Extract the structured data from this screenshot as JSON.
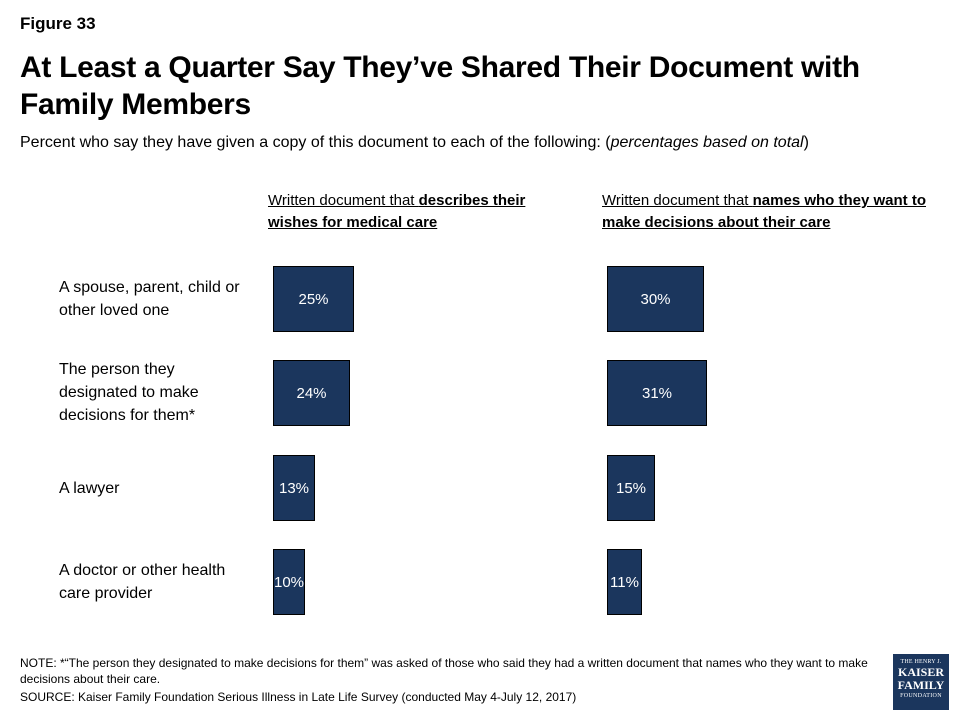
{
  "figure_label": "Figure 33",
  "title": "At Least a Quarter Say They’ve Shared Their Document with Family Members",
  "subtitle": {
    "before": "Percent who say they have given a copy of this document to each of the following: (",
    "italic": "percentages based on total",
    "after": ")"
  },
  "chart_data": {
    "type": "bar",
    "orientation": "horizontal",
    "categories": [
      "A spouse, parent, child or other loved one",
      "The person they designated to make decisions for them*",
      "A lawyer",
      "A doctor or other health care provider"
    ],
    "panels": [
      {
        "header_plain": "Written document that ",
        "header_bold": "describes their wishes for medical care",
        "values": [
          25,
          24,
          13,
          10
        ],
        "labels": [
          "25%",
          "24%",
          "13%",
          "10%"
        ]
      },
      {
        "header_plain": "Written document that ",
        "header_bold": "names who they want to make decisions about their care",
        "values": [
          30,
          31,
          15,
          11
        ],
        "labels": [
          "30%",
          "31%",
          "15%",
          "11%"
        ]
      }
    ],
    "bar_color": "#1b365d",
    "value_unit": "%"
  },
  "note": "NOTE: *“The person they designated to make decisions for them” was asked of those who said they had a written document that names who they want to make decisions about their care.",
  "source": "SOURCE: Kaiser Family Foundation Serious Illness in Late Life Survey (conducted May 4-July 12, 2017)",
  "logo": {
    "line1": "THE HENRY J.",
    "line2": "KAISER",
    "line3": "FAMILY",
    "line4": "FOUNDATION"
  }
}
